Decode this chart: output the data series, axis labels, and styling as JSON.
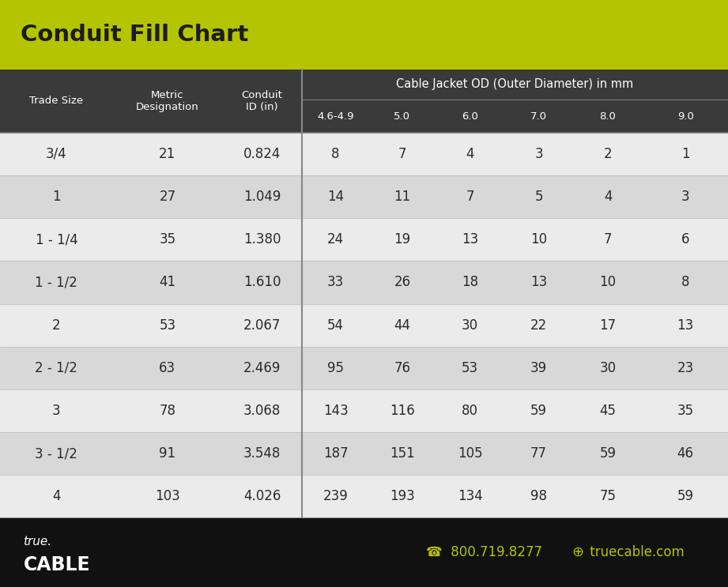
{
  "title": "Conduit Fill Chart",
  "title_bg": "#b5c400",
  "header_bg": "#3a3a3a",
  "header_text_color": "#ffffff",
  "row_bg_light": "#ebebeb",
  "row_bg_dark": "#d8d8d8",
  "row_text_color": "#2a2a2a",
  "footer_bg": "#111111",
  "footer_text_color": "#ffffff",
  "accent_color": "#b5c400",
  "cable_jacket_header": "Cable Jacket OD (Outer Diameter) in mm",
  "sub_col_labels": [
    "4.6-4.9",
    "5.0",
    "6.0",
    "7.0",
    "8.0",
    "9.0"
  ],
  "left_headers_line1": [
    "Trade Size",
    "Metric",
    "Conduit"
  ],
  "left_headers_line2": [
    "",
    "Designation",
    "ID (in)"
  ],
  "rows": [
    {
      "trade": "3/4",
      "metric": "21",
      "id": "0.824",
      "vals": [
        "8",
        "7",
        "4",
        "3",
        "2",
        "1"
      ]
    },
    {
      "trade": "1",
      "metric": "27",
      "id": "1.049",
      "vals": [
        "14",
        "11",
        "7",
        "5",
        "4",
        "3"
      ]
    },
    {
      "trade": "1 - 1/4",
      "metric": "35",
      "id": "1.380",
      "vals": [
        "24",
        "19",
        "13",
        "10",
        "7",
        "6"
      ]
    },
    {
      "trade": "1 - 1/2",
      "metric": "41",
      "id": "1.610",
      "vals": [
        "33",
        "26",
        "18",
        "13",
        "10",
        "8"
      ]
    },
    {
      "trade": "2",
      "metric": "53",
      "id": "2.067",
      "vals": [
        "54",
        "44",
        "30",
        "22",
        "17",
        "13"
      ]
    },
    {
      "trade": "2 - 1/2",
      "metric": "63",
      "id": "2.469",
      "vals": [
        "95",
        "76",
        "53",
        "39",
        "30",
        "23"
      ]
    },
    {
      "trade": "3",
      "metric": "78",
      "id": "3.068",
      "vals": [
        "143",
        "116",
        "80",
        "59",
        "45",
        "35"
      ]
    },
    {
      "trade": "3 - 1/2",
      "metric": "91",
      "id": "3.548",
      "vals": [
        "187",
        "151",
        "105",
        "77",
        "59",
        "46"
      ]
    },
    {
      "trade": "4",
      "metric": "103",
      "id": "4.026",
      "vals": [
        "239",
        "193",
        "134",
        "98",
        "75",
        "59"
      ]
    }
  ],
  "footer_logo_top": "true.",
  "footer_logo_bot": "CABLE",
  "footer_phone": "☎  800.719.8277",
  "footer_web_icon": "⊕",
  "footer_web_text": " truecable.com",
  "fig_width": 9.21,
  "fig_height": 7.43,
  "dpi": 100
}
